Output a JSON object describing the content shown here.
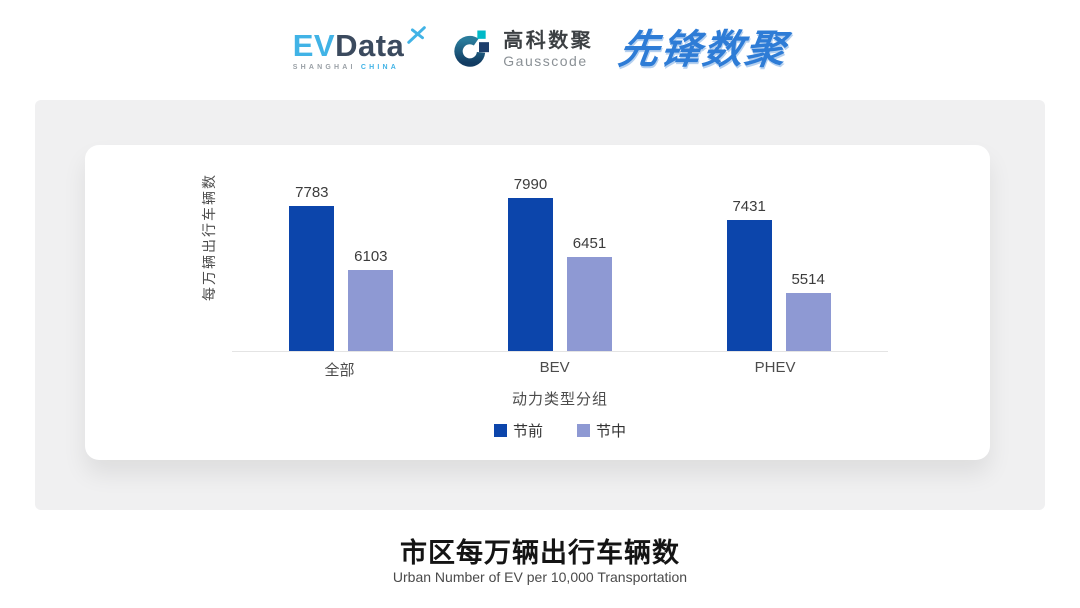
{
  "header": {
    "evdata_logo": {
      "ev": "EV",
      "data": "Data",
      "sub_left": "SHANGHAI",
      "sub_right": "CHINA"
    },
    "gausscode_logo": {
      "cn": "高科数聚",
      "en": "Gausscode"
    },
    "pioneer_logo": {
      "text": "先锋数聚"
    }
  },
  "chart_data": {
    "type": "bar",
    "title": "市区每万辆出行车辆数",
    "subtitle": "Urban Number of EV per 10,000 Transportation",
    "categories": [
      "全部",
      "BEV",
      "PHEV"
    ],
    "series": [
      {
        "name": "节前",
        "color": "#0c45ab",
        "values": [
          7783,
          7990,
          7431
        ]
      },
      {
        "name": "节中",
        "color": "#8e99d3",
        "values": [
          6103,
          6451,
          5514
        ]
      }
    ],
    "xlabel": "动力类型分组",
    "ylabel": "每万辆出行车辆数",
    "ylim": [
      4000,
      9400
    ],
    "grid": false,
    "legend_position": "bottom",
    "value_labels": true
  }
}
